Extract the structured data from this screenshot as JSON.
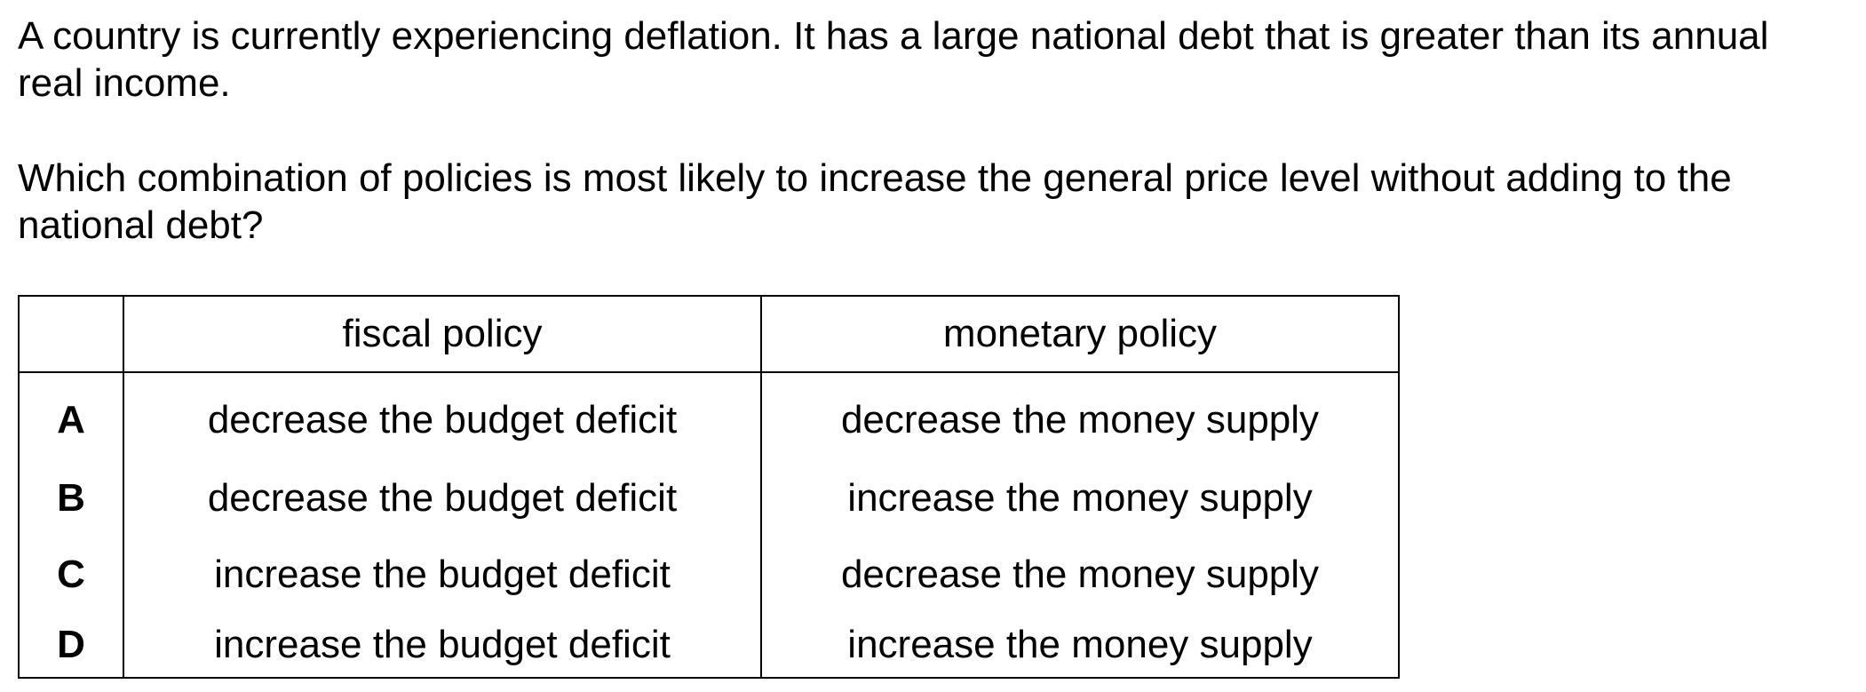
{
  "question": {
    "paragraph1": "A country is currently experiencing deflation. It has a large national debt that is greater than its annual real income.",
    "paragraph2": "Which combination of policies is most likely to increase the general price level without adding to the national debt?"
  },
  "table": {
    "headers": {
      "blank": "",
      "fiscal": "fiscal policy",
      "monetary": "monetary policy"
    },
    "rows": [
      {
        "letter": "A",
        "fiscal": "decrease the budget deficit",
        "monetary": "decrease the money supply"
      },
      {
        "letter": "B",
        "fiscal": "decrease the budget deficit",
        "monetary": "increase the money supply"
      },
      {
        "letter": "C",
        "fiscal": "increase the budget deficit",
        "monetary": "decrease the money supply"
      },
      {
        "letter": "D",
        "fiscal": "increase the budget deficit",
        "monetary": "increase the money supply"
      }
    ]
  }
}
